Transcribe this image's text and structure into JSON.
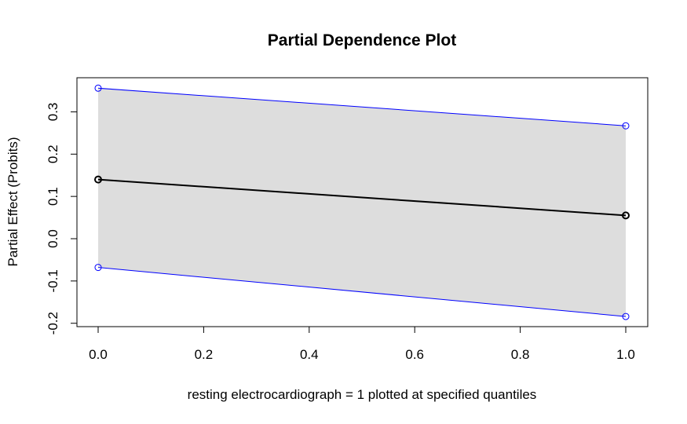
{
  "chart_data": {
    "type": "line",
    "title": "Partial Dependence Plot",
    "xlabel": "resting electrocardiograph = 1 plotted at specified quantiles",
    "ylabel": "Partial Effect (Probits)",
    "xlim": [
      0.0,
      1.0
    ],
    "ylim": [
      -0.2,
      0.35
    ],
    "x_ticks": [
      "0.0",
      "0.2",
      "0.4",
      "0.6",
      "0.8",
      "1.0"
    ],
    "y_ticks": [
      "-0.2",
      "-0.1",
      "0.0",
      "0.1",
      "0.2",
      "0.3"
    ],
    "x": [
      0.0,
      1.0
    ],
    "series": [
      {
        "role": "estimate",
        "values": [
          0.14,
          0.055
        ],
        "color": "#000000"
      },
      {
        "role": "upper",
        "values": [
          0.356,
          0.267
        ],
        "color": "#0000ff"
      },
      {
        "role": "lower",
        "values": [
          -0.068,
          -0.184
        ],
        "color": "#0000ff"
      }
    ],
    "band_color": "#dddddd",
    "grid": false,
    "legend": "none"
  }
}
